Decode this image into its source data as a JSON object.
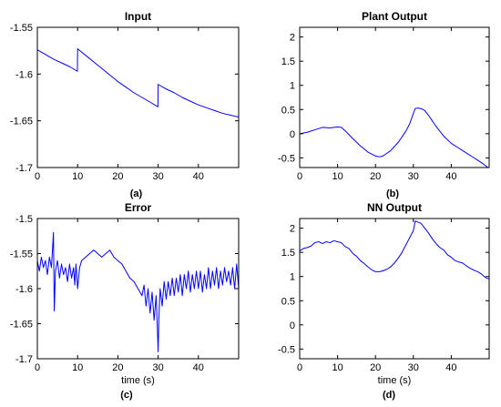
{
  "line_color": "#0000ff",
  "axes_color": "#000000",
  "chart_data": [
    {
      "id": "a",
      "type": "line",
      "title": "Input",
      "caption": "(a)",
      "xlabel": "",
      "ylabel": "",
      "xlim": [
        0,
        50
      ],
      "ylim": [
        -1.7,
        -1.55
      ],
      "xticks": [
        0,
        10,
        20,
        30,
        40
      ],
      "yticks": [
        -1.7,
        -1.65,
        -1.6,
        -1.55
      ],
      "ytick_labels": [
        "-1.7",
        "-1.65",
        "-1.6",
        "-1.55"
      ],
      "grid": false,
      "series": [
        {
          "x": [
            0,
            2,
            4,
            6,
            8,
            9.95,
            10,
            12,
            14,
            16,
            18,
            20,
            22,
            24,
            26,
            28,
            29.95,
            30,
            32,
            34,
            36,
            38,
            40,
            42,
            44,
            46,
            48,
            50
          ],
          "y": [
            -1.574,
            -1.579,
            -1.584,
            -1.588,
            -1.592,
            -1.597,
            -1.573,
            -1.58,
            -1.587,
            -1.594,
            -1.601,
            -1.608,
            -1.614,
            -1.62,
            -1.625,
            -1.63,
            -1.635,
            -1.611,
            -1.616,
            -1.62,
            -1.625,
            -1.629,
            -1.633,
            -1.636,
            -1.639,
            -1.642,
            -1.644,
            -1.646
          ]
        }
      ]
    },
    {
      "id": "b",
      "type": "line",
      "title": "Plant Output",
      "caption": "(b)",
      "xlabel": "",
      "ylabel": "",
      "xlim": [
        0,
        50
      ],
      "ylim": [
        -0.7,
        2.2
      ],
      "xticks": [
        0,
        10,
        20,
        30,
        40
      ],
      "yticks": [
        -0.5,
        0,
        0.5,
        1,
        1.5,
        2
      ],
      "ytick_labels": [
        "-0.5",
        "0",
        "0.5",
        "1",
        "1.5",
        "2"
      ],
      "grid": false,
      "series": [
        {
          "x": [
            0,
            2,
            4,
            6,
            8,
            10,
            11,
            12,
            14,
            16,
            18,
            20,
            21,
            22,
            24,
            26,
            28,
            29,
            30,
            30.5,
            31,
            32,
            33,
            34,
            36,
            38,
            40,
            42,
            44,
            46,
            48,
            49,
            50
          ],
          "y": [
            0.0,
            0.03,
            0.08,
            0.13,
            0.12,
            0.14,
            0.13,
            0.06,
            -0.1,
            -0.25,
            -0.38,
            -0.46,
            -0.48,
            -0.46,
            -0.35,
            -0.18,
            0.05,
            0.2,
            0.42,
            0.52,
            0.53,
            0.52,
            0.48,
            0.38,
            0.15,
            -0.05,
            -0.2,
            -0.3,
            -0.4,
            -0.5,
            -0.6,
            -0.66,
            -0.72
          ]
        }
      ]
    },
    {
      "id": "c",
      "type": "line",
      "title": "Error",
      "caption": "(c)",
      "xlabel": "time (s)",
      "ylabel": "",
      "xlim": [
        0,
        50
      ],
      "ylim": [
        -1.7,
        -1.5
      ],
      "xticks": [
        0,
        10,
        20,
        30,
        40
      ],
      "yticks": [
        -1.7,
        -1.65,
        -1.6,
        -1.55,
        -1.5
      ],
      "ytick_labels": [
        "-1.7",
        "-1.65",
        "-1.6",
        "-1.55",
        "-1.5"
      ],
      "grid": false,
      "series": [
        {
          "x": [
            0,
            0.5,
            1,
            1.5,
            2,
            2.5,
            3,
            3.5,
            3.8,
            4,
            4.2,
            4.5,
            5,
            5.5,
            6,
            6.5,
            7,
            7.5,
            8,
            8.5,
            9,
            9.3,
            9.6,
            10,
            10.5,
            11,
            12,
            13,
            14,
            15,
            16,
            17,
            18,
            19,
            20,
            21,
            22,
            23,
            24,
            25,
            26,
            26.5,
            27,
            27.5,
            28,
            28.5,
            29,
            29.5,
            29.8,
            30,
            30.2,
            30.5,
            31,
            31.5,
            32,
            32.5,
            33,
            33.5,
            34,
            34.5,
            35,
            35.5,
            36,
            36.5,
            37,
            37.5,
            38,
            38.5,
            39,
            39.5,
            40,
            40.5,
            41,
            41.5,
            42,
            42.5,
            43,
            43.5,
            44,
            44.5,
            45,
            45.5,
            46,
            46.5,
            47,
            47.5,
            48,
            48.5,
            49,
            49.5,
            50
          ],
          "y": [
            -1.56,
            -1.575,
            -1.555,
            -1.57,
            -1.56,
            -1.58,
            -1.555,
            -1.57,
            -1.54,
            -1.52,
            -1.632,
            -1.575,
            -1.56,
            -1.585,
            -1.565,
            -1.58,
            -1.57,
            -1.59,
            -1.565,
            -1.585,
            -1.57,
            -1.595,
            -1.565,
            -1.6,
            -1.57,
            -1.56,
            -1.555,
            -1.55,
            -1.545,
            -1.55,
            -1.555,
            -1.55,
            -1.545,
            -1.555,
            -1.56,
            -1.565,
            -1.575,
            -1.585,
            -1.59,
            -1.6,
            -1.61,
            -1.595,
            -1.625,
            -1.6,
            -1.635,
            -1.605,
            -1.645,
            -1.61,
            -1.655,
            -1.69,
            -1.64,
            -1.6,
            -1.625,
            -1.59,
            -1.615,
            -1.59,
            -1.61,
            -1.585,
            -1.61,
            -1.585,
            -1.605,
            -1.58,
            -1.61,
            -1.58,
            -1.6,
            -1.575,
            -1.605,
            -1.58,
            -1.6,
            -1.575,
            -1.6,
            -1.575,
            -1.605,
            -1.58,
            -1.6,
            -1.57,
            -1.6,
            -1.575,
            -1.595,
            -1.57,
            -1.6,
            -1.575,
            -1.595,
            -1.57,
            -1.59,
            -1.575,
            -1.595,
            -1.57,
            -1.6,
            -1.565,
            -1.6
          ]
        }
      ]
    },
    {
      "id": "d",
      "type": "line",
      "title": "NN Output",
      "caption": "(d)",
      "xlabel": "time (s)",
      "ylabel": "",
      "xlim": [
        0,
        50
      ],
      "ylim": [
        -0.7,
        2.2
      ],
      "xticks": [
        0,
        10,
        20,
        30,
        40
      ],
      "yticks": [
        -0.5,
        0,
        0.5,
        1,
        1.5,
        2
      ],
      "ytick_labels": [
        "-0.5",
        "0",
        "0.5",
        "1",
        "1.5",
        "2"
      ],
      "grid": false,
      "series": [
        {
          "x": [
            0,
            1,
            2,
            3,
            4,
            5,
            6,
            7,
            8,
            9,
            10,
            11,
            12,
            13,
            14,
            15,
            16,
            17,
            18,
            19,
            20,
            21,
            22,
            23,
            24,
            25,
            26,
            27,
            28,
            29,
            30,
            30.5,
            31,
            32,
            33,
            34,
            35,
            36,
            37,
            38,
            39,
            40,
            41,
            42,
            43,
            44,
            45,
            46,
            47,
            48,
            49,
            50
          ],
          "y": [
            1.53,
            1.58,
            1.6,
            1.63,
            1.7,
            1.72,
            1.68,
            1.72,
            1.7,
            1.74,
            1.72,
            1.7,
            1.62,
            1.58,
            1.48,
            1.42,
            1.33,
            1.27,
            1.2,
            1.14,
            1.1,
            1.1,
            1.12,
            1.15,
            1.2,
            1.28,
            1.38,
            1.5,
            1.65,
            1.8,
            1.95,
            2.15,
            2.13,
            2.1,
            2.0,
            1.9,
            1.78,
            1.68,
            1.6,
            1.55,
            1.45,
            1.4,
            1.33,
            1.3,
            1.28,
            1.22,
            1.17,
            1.13,
            1.1,
            1.05,
            0.98,
            0.95
          ]
        }
      ]
    }
  ]
}
